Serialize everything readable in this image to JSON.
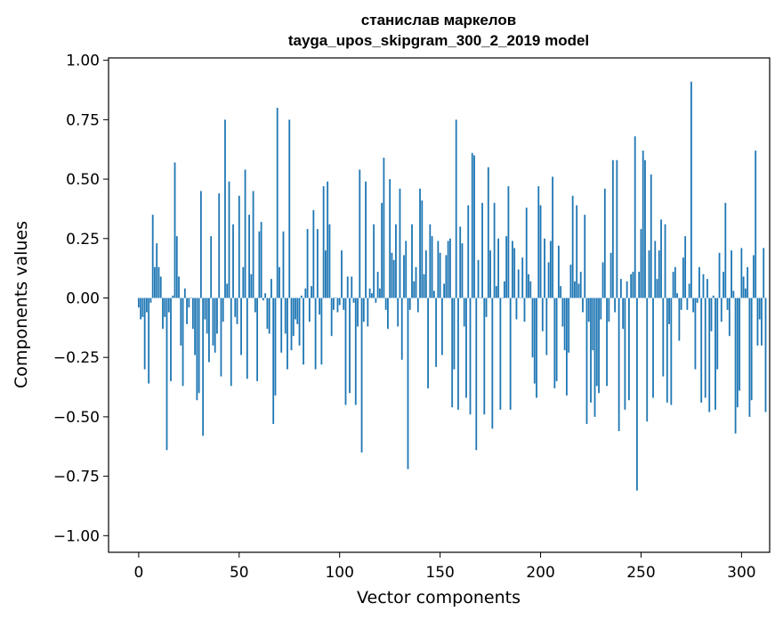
{
  "chart_data": {
    "type": "bar",
    "title": [
      "станислав маркелов",
      "tayga_upos_skipgram_300_2_2019 model"
    ],
    "xlabel": "Vector components",
    "ylabel": "Components values",
    "xlim": [
      -15,
      314
    ],
    "ylim": [
      -1.07,
      1.01
    ],
    "xticks": [
      0,
      50,
      100,
      150,
      200,
      250,
      300
    ],
    "xtick_labels": [
      "0",
      "50",
      "100",
      "150",
      "200",
      "250",
      "300"
    ],
    "yticks": [
      1.0,
      0.75,
      0.5,
      0.25,
      0.0,
      -0.25,
      -0.5,
      -0.75,
      -1.0
    ],
    "ytick_labels": [
      "1.00",
      "0.75",
      "0.50",
      "0.25",
      "0.00",
      "−0.25",
      "−0.50",
      "−0.75",
      "−1.00"
    ],
    "grid": false,
    "bar_color": "#1f77b4",
    "values": [
      -0.04,
      -0.09,
      -0.08,
      -0.3,
      -0.06,
      -0.36,
      -0.02,
      0.35,
      0.13,
      0.23,
      0.13,
      0.09,
      -0.13,
      -0.08,
      -0.64,
      -0.06,
      -0.35,
      0.01,
      0.57,
      0.26,
      0.09,
      -0.2,
      -0.37,
      0.04,
      -0.11,
      -0.04,
      0.0,
      -0.13,
      -0.24,
      -0.43,
      -0.4,
      0.45,
      -0.58,
      -0.09,
      -0.15,
      -0.27,
      0.26,
      -0.2,
      -0.23,
      -0.15,
      0.44,
      -0.33,
      -0.1,
      0.75,
      0.06,
      0.49,
      -0.37,
      0.31,
      -0.08,
      -0.11,
      0.43,
      -0.24,
      0.13,
      0.54,
      -0.34,
      0.35,
      0.1,
      0.45,
      -0.06,
      -0.35,
      0.28,
      0.32,
      -0.01,
      0.02,
      -0.13,
      -0.15,
      0.08,
      -0.53,
      -0.41,
      0.8,
      0.13,
      -0.23,
      0.28,
      -0.15,
      -0.3,
      0.75,
      -0.22,
      -0.16,
      -0.09,
      -0.11,
      -0.2,
      0.01,
      -0.28,
      0.04,
      0.29,
      -0.1,
      0.05,
      0.37,
      -0.3,
      0.29,
      -0.07,
      -0.28,
      0.47,
      0.2,
      0.49,
      0.31,
      -0.16,
      -0.05,
      0.0,
      -0.06,
      -0.03,
      0.2,
      -0.05,
      -0.45,
      0.09,
      -0.4,
      0.09,
      -0.02,
      -0.45,
      -0.12,
      0.54,
      -0.65,
      -0.1,
      0.49,
      -0.12,
      0.04,
      0.02,
      0.31,
      -0.02,
      0.11,
      0.04,
      0.4,
      0.59,
      -0.05,
      -0.13,
      0.5,
      0.19,
      0.16,
      0.31,
      -0.12,
      0.46,
      -0.26,
      0.18,
      0.24,
      -0.72,
      -0.05,
      0.31,
      0.07,
      0.13,
      -0.06,
      0.46,
      0.41,
      0.1,
      0.2,
      -0.38,
      0.31,
      0.26,
      0.03,
      -0.29,
      0.24,
      0.19,
      -0.24,
      0.06,
      0.18,
      0.24,
      0.25,
      -0.46,
      -0.3,
      0.75,
      -0.47,
      0.3,
      0.23,
      -0.12,
      -0.42,
      0.39,
      -0.49,
      0.61,
      0.6,
      -0.64,
      0.16,
      0.0,
      0.4,
      -0.49,
      -0.08,
      0.55,
      0.2,
      -0.55,
      0.4,
      0.05,
      0.25,
      -0.47,
      0.0,
      0.07,
      0.26,
      0.47,
      -0.47,
      0.24,
      0.21,
      -0.09,
      0.12,
      0.0,
      0.17,
      -0.1,
      0.38,
      0.1,
      0.07,
      -0.25,
      -0.36,
      -0.42,
      0.47,
      0.39,
      -0.14,
      0.25,
      -0.24,
      0.15,
      0.24,
      0.51,
      -0.38,
      -0.35,
      0.22,
      0.05,
      -0.12,
      -0.22,
      -0.41,
      -0.23,
      0.14,
      0.43,
      0.07,
      0.39,
      0.06,
      0.11,
      -0.06,
      0.35,
      -0.53,
      -0.1,
      -0.44,
      -0.22,
      -0.5,
      -0.37,
      -0.4,
      -0.09,
      0.15,
      0.46,
      -0.37,
      -0.1,
      0.19,
      0.58,
      -0.06,
      0.58,
      -0.56,
      0.08,
      -0.13,
      -0.47,
      0.07,
      -0.43,
      0.1,
      0.11,
      0.68,
      -0.81,
      0.11,
      0.29,
      0.62,
      0.58,
      -0.52,
      0.2,
      0.52,
      -0.42,
      0.24,
      0.08,
      0.2,
      0.33,
      -0.33,
      0.31,
      -0.44,
      -0.11,
      -0.45,
      0.11,
      0.13,
      0.02,
      -0.18,
      -0.05,
      0.17,
      0.26,
      -0.05,
      0.06,
      0.91,
      -0.06,
      -0.3,
      -0.02,
      0.13,
      -0.44,
      0.1,
      -0.42,
      0.08,
      -0.48,
      -0.14,
      0.01,
      -0.47,
      -0.3,
      0.19,
      -0.1,
      0.11,
      0.4,
      -0.05,
      -0.16,
      0.2,
      0.03,
      -0.57,
      -0.46,
      -0.39,
      0.21,
      0.09,
      0.04,
      0.13,
      -0.5,
      -0.43,
      0.18,
      0.62,
      -0.2,
      -0.09,
      -0.2,
      0.21,
      -0.48
    ]
  }
}
